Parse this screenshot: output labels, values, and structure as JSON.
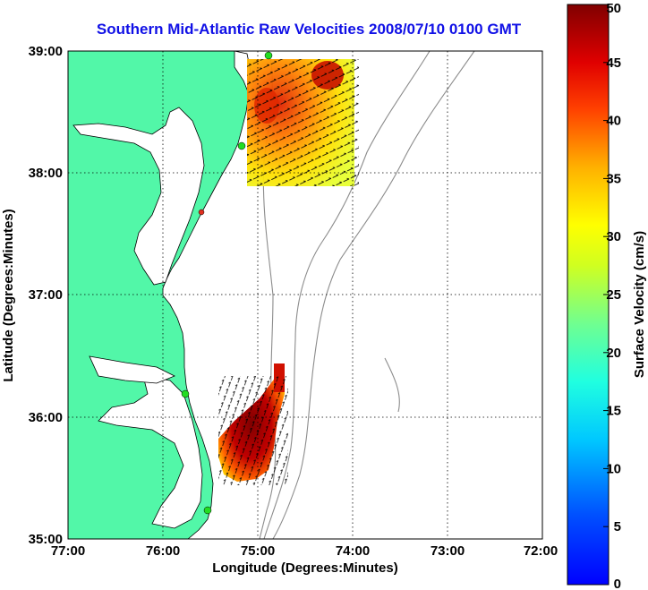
{
  "chart_data": {
    "type": "map",
    "title": "Southern Mid-Atlantic Raw Velocities 2008/07/10 0100 GMT",
    "xlabel": "Longitude (Degrees:Minutes)",
    "ylabel": "Latitude (Degrees:Minutes)",
    "x_ticks": [
      "77:00",
      "76:00",
      "75:00",
      "74:00",
      "73:00",
      "72:00"
    ],
    "y_ticks": [
      "39:00",
      "38:00",
      "37:00",
      "36:00",
      "35:00"
    ],
    "xlim": [
      -77,
      -72
    ],
    "ylim": [
      35,
      39
    ],
    "grid": true,
    "colorbar": {
      "label": "Surface Velocity (cm/s)",
      "ticks": [
        "0",
        "5",
        "10",
        "15",
        "20",
        "25",
        "30",
        "35",
        "40",
        "45",
        "50"
      ],
      "range": [
        0,
        50
      ],
      "colormap": "jet"
    },
    "colors": {
      "land": "#52f7a8",
      "title": "#1010e6",
      "bathymetry": "#8c8c8c",
      "coastline": "#000000",
      "stations": "#22dd22"
    }
  }
}
